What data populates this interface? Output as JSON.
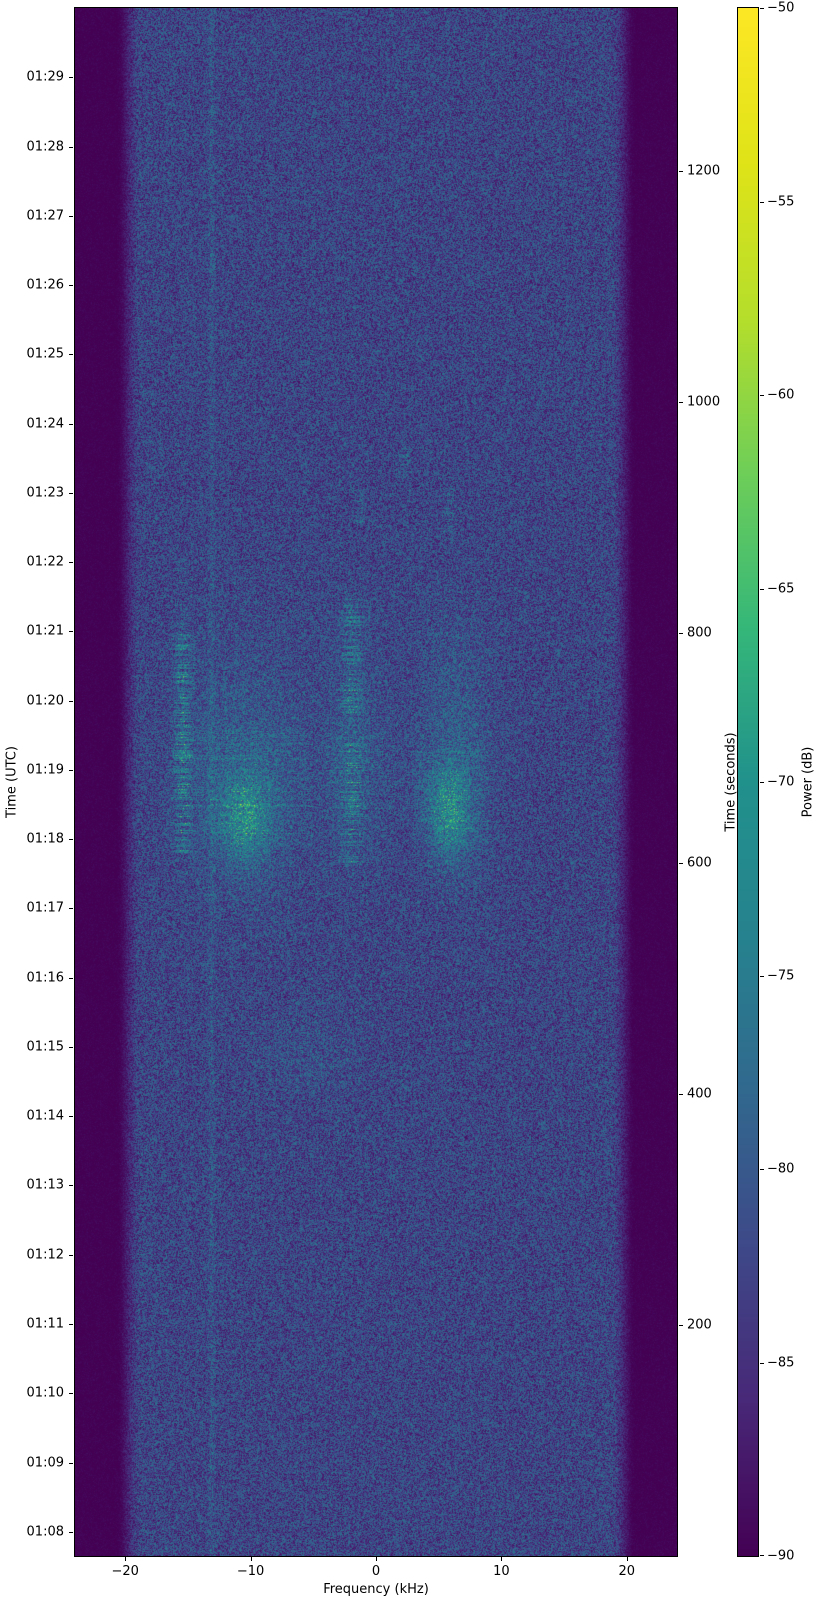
{
  "figure": {
    "xlabel": "Frequency (kHz)",
    "ylabel_left": "Time (UTC)",
    "ylabel_right": "Time (seconds)",
    "colorbar_label": "Power (dB)"
  },
  "chart_data": {
    "type": "heatmap",
    "title": "",
    "xlabel": "Frequency (kHz)",
    "ylabel": "Time (UTC)",
    "ylabel_right": "Time (seconds)",
    "colorbar_label": "Power (dB)",
    "colormap": "viridis",
    "x_range_khz": [
      -24,
      24
    ],
    "x_ticks": [
      -20,
      -10,
      0,
      10,
      20
    ],
    "x_tick_labels": [
      "−20",
      "−10",
      "0",
      "10",
      "20"
    ],
    "utc_ticks": {
      "labels": [
        "01:08",
        "01:09",
        "01:10",
        "01:11",
        "01:12",
        "01:13",
        "01:14",
        "01:15",
        "01:16",
        "01:17",
        "01:18",
        "01:19",
        "01:20",
        "01:21",
        "01:22",
        "01:23",
        "01:24",
        "01:25",
        "01:26",
        "01:27",
        "01:28",
        "01:29"
      ],
      "first_tick_seconds": 21,
      "interval_seconds": 60
    },
    "seconds_axis": {
      "range": [
        0,
        1341
      ],
      "ticks": [
        200,
        400,
        600,
        800,
        1000,
        1200
      ],
      "tick_labels": [
        "200",
        "400",
        "600",
        "800",
        "1000",
        "1200"
      ]
    },
    "colorbar": {
      "range_db": [
        -90,
        -50
      ],
      "ticks_db": [
        -90,
        -85,
        -80,
        -75,
        -70,
        -65,
        -60,
        -55,
        -50
      ],
      "tick_labels": [
        "−90",
        "−85",
        "−80",
        "−75",
        "−70",
        "−65",
        "−60",
        "−55",
        "−50"
      ],
      "viridis_stops": [
        "#440154",
        "#482878",
        "#3e4989",
        "#31688e",
        "#26828e",
        "#21918c",
        "#35b779",
        "#6ece58",
        "#b5de2b",
        "#dfe318",
        "#fde725"
      ]
    },
    "noise": {
      "floor_db": -90,
      "band_min_db": -88.5,
      "band_span_db": 12.5,
      "edge_full_khz": 20.7,
      "edge_inner_khz": 18.7,
      "seed": 20240131
    },
    "features": [
      {
        "type": "vline",
        "f": -13.1,
        "sigma_f": 0.18,
        "t": [
          0,
          1341
        ],
        "amp_db": 2.2
      },
      {
        "type": "blob",
        "f": -10.5,
        "sigma_f": 3.4,
        "t": 680,
        "sigma_t": 75,
        "amp_db": 3.5
      },
      {
        "type": "blob",
        "f": -10.4,
        "sigma_f": 1.4,
        "t": 638,
        "sigma_t": 26,
        "amp_db": 9.0
      },
      {
        "type": "column",
        "f": -15.4,
        "sigma_f": 0.5,
        "t": [
          608,
          800
        ],
        "amp_db": 8.0,
        "row_p": 0.45
      },
      {
        "type": "column",
        "f": -15.5,
        "sigma_f": 0.35,
        "t": [
          800,
          862
        ],
        "amp_db": 3.0,
        "row_p": 0.3
      },
      {
        "type": "column",
        "f": -1.9,
        "sigma_f": 0.6,
        "t": [
          600,
          830
        ],
        "amp_db": 6.5,
        "row_p": 0.38
      },
      {
        "type": "blob",
        "f": 5.9,
        "sigma_f": 1.2,
        "t": 645,
        "sigma_t": 30,
        "amp_db": 9.5
      },
      {
        "type": "blob",
        "f": 6.4,
        "sigma_f": 2.0,
        "t": 706,
        "sigma_t": 72,
        "amp_db": 3.2
      },
      {
        "type": "blob",
        "f": -1.7,
        "sigma_f": 1.7,
        "t": 695,
        "sigma_t": 75,
        "amp_db": 2.4
      },
      {
        "type": "column",
        "f": 2.3,
        "sigma_f": 0.3,
        "t": [
          933,
          960
        ],
        "amp_db": 5.5,
        "row_p": 0.5
      },
      {
        "type": "column",
        "f": 5.9,
        "sigma_f": 0.3,
        "t": [
          885,
          927
        ],
        "amp_db": 4.5,
        "row_p": 0.4
      },
      {
        "type": "column",
        "f": -1.3,
        "sigma_f": 0.3,
        "t": [
          895,
          925
        ],
        "amp_db": 4.0,
        "row_p": 0.4
      },
      {
        "type": "blob",
        "f": -5.0,
        "sigma_f": 3.0,
        "t": 437,
        "sigma_t": 28,
        "amp_db": 1.4
      },
      {
        "type": "hband",
        "f": [
          -16,
          -5
        ],
        "t": [
          615,
          720
        ],
        "amp_db": 2.2,
        "row_p": 0.22
      },
      {
        "type": "hband",
        "f": [
          -4,
          4
        ],
        "t": [
          640,
          715
        ],
        "amp_db": 2.0,
        "row_p": 0.18
      },
      {
        "type": "hband",
        "f": [
          3,
          9
        ],
        "t": [
          612,
          700
        ],
        "amp_db": 1.8,
        "row_p": 0.2
      }
    ]
  }
}
